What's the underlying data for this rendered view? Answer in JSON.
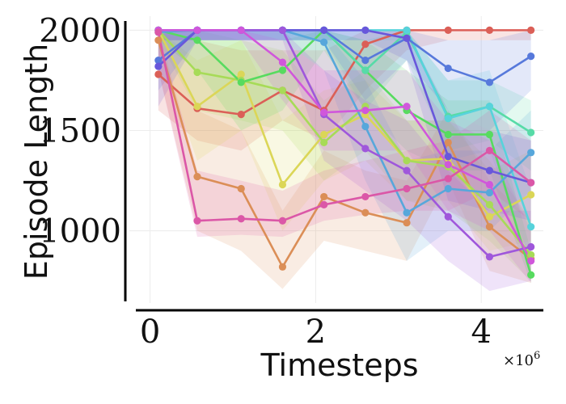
{
  "chart_data": {
    "type": "line",
    "title": "",
    "xlabel": "Timesteps",
    "ylabel": "Episode Length",
    "x_exponent_label": "×10",
    "x_exponent_power": "6",
    "x_scale": 1000000,
    "xlim": [
      -0.25,
      4.75
    ],
    "ylim": [
      640,
      2070
    ],
    "grid": true,
    "legend": "none",
    "x_ticks": [
      {
        "value": 0,
        "label": "0"
      },
      {
        "value": 2,
        "label": "2"
      },
      {
        "value": 4,
        "label": "4"
      }
    ],
    "y_ticks": [
      {
        "value": 1000,
        "label": "1000"
      },
      {
        "value": 1500,
        "label": "1500"
      },
      {
        "value": 2000,
        "label": "2000"
      }
    ],
    "x": [
      0.1,
      0.57,
      1.1,
      1.6,
      2.1,
      2.6,
      3.1,
      3.6,
      4.1,
      4.6
    ],
    "series": [
      {
        "color": "#db5f57",
        "values": [
          1780,
          1610,
          1580,
          1700,
          1600,
          1930,
          2000,
          2000,
          2000,
          2000
        ],
        "band": [
          [
            1600,
            2000
          ],
          [
            1450,
            1950
          ],
          [
            1400,
            1900
          ],
          [
            1550,
            1900
          ],
          [
            1450,
            1900
          ],
          [
            1700,
            2000
          ],
          [
            1900,
            2000
          ],
          [
            1950,
            2000
          ],
          [
            1950,
            2000
          ],
          [
            1950,
            2000
          ]
        ]
      },
      {
        "color": "#db8e57",
        "values": [
          1950,
          1270,
          1210,
          820,
          1170,
          1090,
          1040,
          1440,
          1020,
          860
        ],
        "band": [
          [
            1800,
            2000
          ],
          [
            1000,
            1600
          ],
          [
            900,
            1500
          ],
          [
            710,
            1100
          ],
          [
            950,
            1400
          ],
          [
            900,
            1300
          ],
          [
            850,
            1250
          ],
          [
            1250,
            1600
          ],
          [
            800,
            1250
          ],
          [
            740,
            1050
          ]
        ]
      },
      {
        "color": "#dbd657",
        "values": [
          2000,
          1620,
          1780,
          1230,
          1480,
          1580,
          1350,
          1360,
          1070,
          1180
        ],
        "band": [
          [
            1900,
            2000
          ],
          [
            1350,
            1850
          ],
          [
            1500,
            1950
          ],
          [
            1000,
            1550
          ],
          [
            1250,
            1700
          ],
          [
            1350,
            1750
          ],
          [
            1150,
            1550
          ],
          [
            1150,
            1550
          ],
          [
            900,
            1300
          ],
          [
            950,
            1400
          ]
        ]
      },
      {
        "color": "#a7db57",
        "values": [
          2000,
          1790,
          1750,
          1700,
          1440,
          1620,
          1350,
          1320,
          1130,
          880
        ],
        "band": [
          [
            1950,
            2000
          ],
          [
            1600,
            1950
          ],
          [
            1550,
            1950
          ],
          [
            1500,
            1900
          ],
          [
            1250,
            1650
          ],
          [
            1400,
            1800
          ],
          [
            1150,
            1550
          ],
          [
            1100,
            1550
          ],
          [
            950,
            1350
          ],
          [
            750,
            1050
          ]
        ]
      },
      {
        "color": "#57db5f",
        "values": [
          2000,
          1950,
          1740,
          1800,
          2000,
          1800,
          1600,
          1480,
          1480,
          780
        ],
        "band": [
          [
            1950,
            2000
          ],
          [
            1800,
            2000
          ],
          [
            1500,
            1950
          ],
          [
            1600,
            1950
          ],
          [
            1900,
            2000
          ],
          [
            1600,
            1950
          ],
          [
            1400,
            1800
          ],
          [
            1300,
            1650
          ],
          [
            1300,
            1650
          ],
          [
            740,
            900
          ]
        ]
      },
      {
        "color": "#57dba7",
        "values": [
          2000,
          2000,
          2000,
          2000,
          2000,
          1800,
          1990,
          1570,
          1620,
          1490
        ],
        "band": [
          [
            1950,
            2000
          ],
          [
            1950,
            2000
          ],
          [
            1950,
            2000
          ],
          [
            1950,
            2000
          ],
          [
            1950,
            2000
          ],
          [
            1600,
            1950
          ],
          [
            1850,
            2000
          ],
          [
            1400,
            1750
          ],
          [
            1450,
            1750
          ],
          [
            1300,
            1650
          ]
        ]
      },
      {
        "color": "#57d3db",
        "values": [
          2000,
          2000,
          2000,
          2000,
          2000,
          2000,
          2000,
          1560,
          1620,
          1020
        ],
        "band": [
          [
            1950,
            2000
          ],
          [
            1950,
            2000
          ],
          [
            1950,
            2000
          ],
          [
            1950,
            2000
          ],
          [
            1950,
            2000
          ],
          [
            1950,
            2000
          ],
          [
            1950,
            2000
          ],
          [
            1350,
            1750
          ],
          [
            1400,
            1800
          ],
          [
            850,
            1200
          ]
        ]
      },
      {
        "color": "#57a7db",
        "values": [
          1990,
          2000,
          2000,
          2000,
          1940,
          1520,
          1090,
          1210,
          1190,
          1390
        ],
        "band": [
          [
            1950,
            2000
          ],
          [
            1950,
            2000
          ],
          [
            1950,
            2000
          ],
          [
            1950,
            2000
          ],
          [
            1800,
            2000
          ],
          [
            1250,
            1750
          ],
          [
            850,
            1350
          ],
          [
            1000,
            1400
          ],
          [
            1000,
            1400
          ],
          [
            1200,
            1600
          ]
        ]
      },
      {
        "color": "#5779db",
        "values": [
          1850,
          2000,
          2000,
          2000,
          2000,
          1850,
          1960,
          1810,
          1740,
          1870
        ],
        "band": [
          [
            1700,
            2000
          ],
          [
            1950,
            2000
          ],
          [
            1950,
            2000
          ],
          [
            1950,
            2000
          ],
          [
            1950,
            2000
          ],
          [
            1650,
            2000
          ],
          [
            1850,
            2000
          ],
          [
            1600,
            1950
          ],
          [
            1500,
            1950
          ],
          [
            1700,
            2000
          ]
        ]
      },
      {
        "color": "#6957db",
        "values": [
          1820,
          2000,
          2000,
          2000,
          2000,
          2000,
          1960,
          1370,
          1300,
          1240
        ],
        "band": [
          [
            1620,
            1980
          ],
          [
            1950,
            2000
          ],
          [
            1950,
            2000
          ],
          [
            1950,
            2000
          ],
          [
            1950,
            2000
          ],
          [
            1950,
            2000
          ],
          [
            1850,
            2000
          ],
          [
            1150,
            1600
          ],
          [
            1100,
            1500
          ],
          [
            1050,
            1450
          ]
        ]
      },
      {
        "color": "#9f57db",
        "values": [
          2000,
          2000,
          2000,
          2000,
          1580,
          1410,
          1300,
          1070,
          870,
          920
        ],
        "band": [
          [
            1950,
            2000
          ],
          [
            1950,
            2000
          ],
          [
            1950,
            2000
          ],
          [
            1950,
            2000
          ],
          [
            1350,
            1800
          ],
          [
            1200,
            1650
          ],
          [
            1050,
            1550
          ],
          [
            850,
            1300
          ],
          [
            700,
            1100
          ],
          [
            750,
            1100
          ]
        ]
      },
      {
        "color": "#d057db",
        "values": [
          2000,
          2000,
          2000,
          1840,
          1590,
          1600,
          1620,
          1330,
          1230,
          850
        ],
        "band": [
          [
            1950,
            2000
          ],
          [
            1950,
            2000
          ],
          [
            1950,
            2000
          ],
          [
            1650,
            1950
          ],
          [
            1400,
            1800
          ],
          [
            1400,
            1800
          ],
          [
            1400,
            1800
          ],
          [
            1100,
            1550
          ],
          [
            1000,
            1450
          ],
          [
            740,
            1000
          ]
        ]
      },
      {
        "color": "#db57a7",
        "values": [
          1990,
          1050,
          1060,
          1050,
          1130,
          1170,
          1210,
          1260,
          1400,
          1240
        ],
        "band": [
          [
            1800,
            2000
          ],
          [
            970,
            1300
          ],
          [
            980,
            1250
          ],
          [
            970,
            1200
          ],
          [
            1050,
            1300
          ],
          [
            1080,
            1350
          ],
          [
            1100,
            1400
          ],
          [
            1100,
            1450
          ],
          [
            1200,
            1600
          ],
          [
            1050,
            1450
          ]
        ]
      }
    ]
  }
}
